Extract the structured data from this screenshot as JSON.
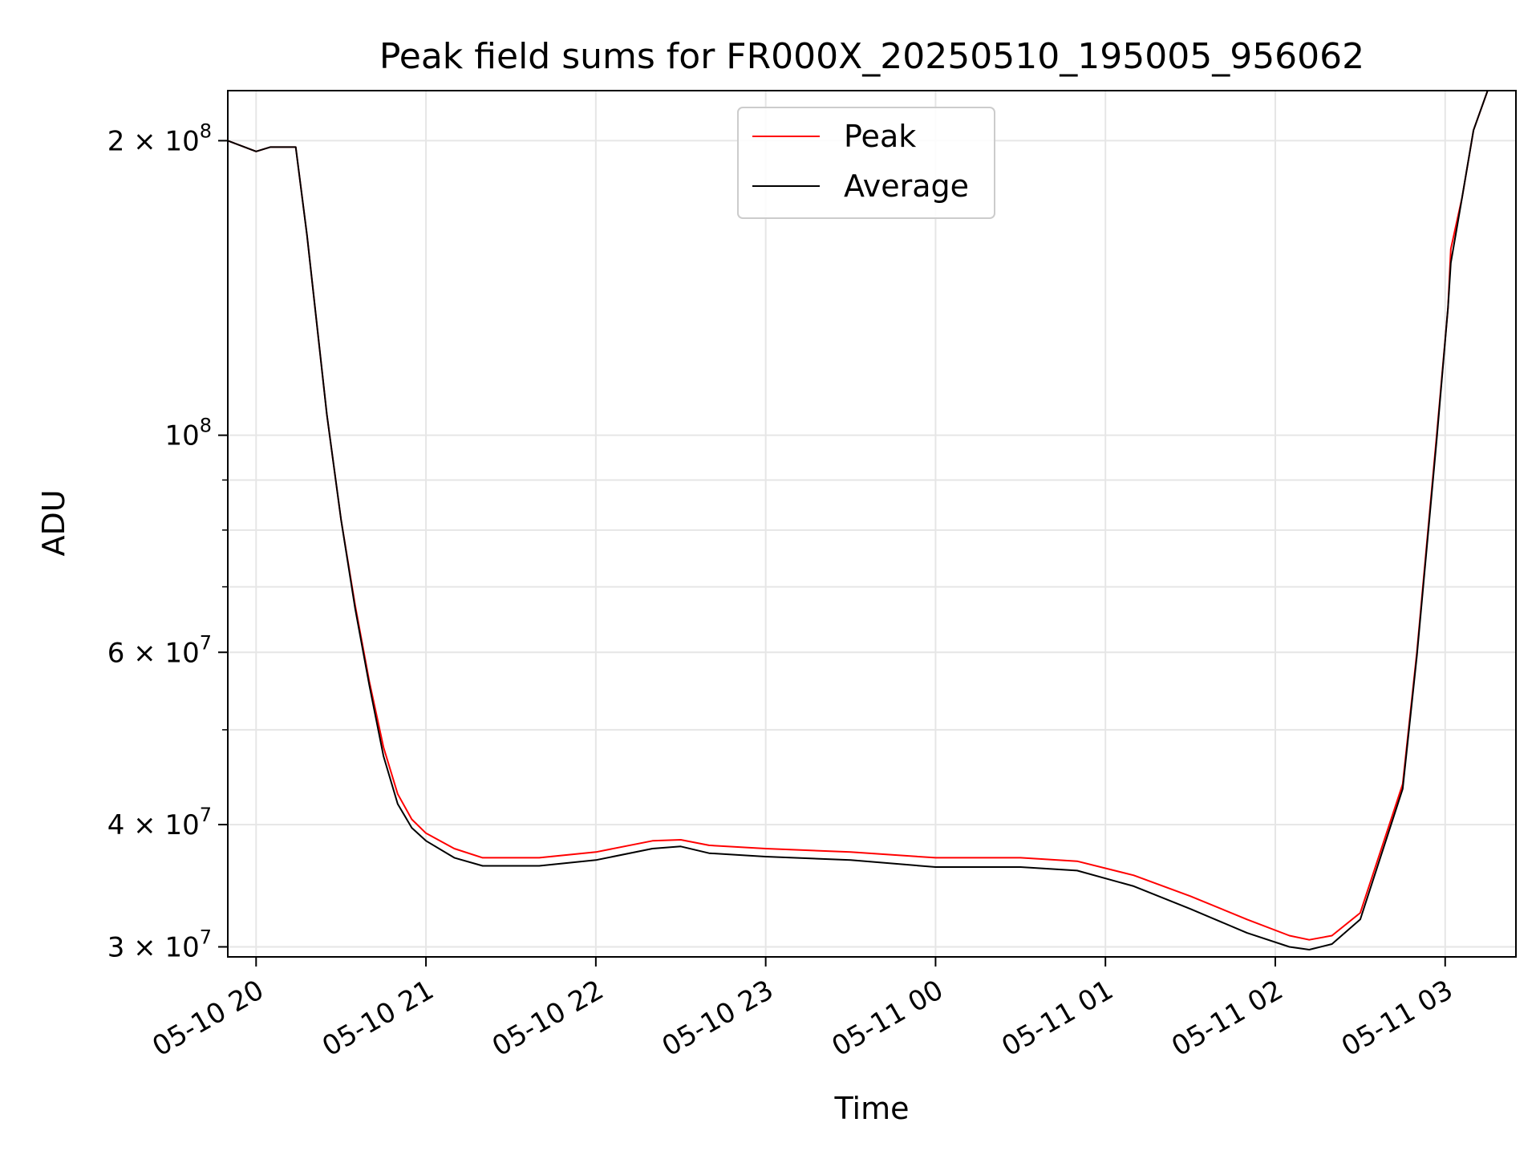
{
  "chart_data": {
    "type": "line",
    "title": "Peak field sums for FR000X_20250510_195005_956062",
    "xlabel": "Time",
    "ylabel": "ADU",
    "yscale": "log",
    "grid": true,
    "legend_position": "upper center",
    "xlim": [
      "2025-05-10 19:50",
      "2025-05-11 03:25"
    ],
    "ylim": [
      29300000,
      225000000
    ],
    "x_ticks": [
      "2025-05-10 20:00",
      "2025-05-10 21:00",
      "2025-05-10 22:00",
      "2025-05-10 23:00",
      "2025-05-11 00:00",
      "2025-05-11 01:00",
      "2025-05-11 02:00",
      "2025-05-11 03:00"
    ],
    "x_tick_labels": [
      "05-10 20",
      "05-10 21",
      "05-10 22",
      "05-10 23",
      "05-11 00",
      "05-11 01",
      "05-11 02",
      "05-11 03"
    ],
    "y_ticks": [
      {
        "value": 30000000,
        "mantissa": "3",
        "exp": "7"
      },
      {
        "value": 40000000,
        "mantissa": "4",
        "exp": "7"
      },
      {
        "value": 60000000,
        "mantissa": "6",
        "exp": "7"
      },
      {
        "value": 100000000,
        "mantissa": "",
        "exp": "8"
      },
      {
        "value": 200000000,
        "mantissa": "2",
        "exp": "8"
      }
    ],
    "y_minor_ticks": [
      50000000,
      70000000,
      80000000,
      90000000
    ],
    "x": [
      "2025-05-10 19:50",
      "2025-05-10 20:00",
      "2025-05-10 20:05",
      "2025-05-10 20:14",
      "2025-05-10 20:18",
      "2025-05-10 20:25",
      "2025-05-10 20:30",
      "2025-05-10 20:35",
      "2025-05-10 20:40",
      "2025-05-10 20:45",
      "2025-05-10 20:50",
      "2025-05-10 20:55",
      "2025-05-10 21:00",
      "2025-05-10 21:10",
      "2025-05-10 21:20",
      "2025-05-10 21:40",
      "2025-05-10 22:00",
      "2025-05-10 22:20",
      "2025-05-10 22:30",
      "2025-05-10 22:40",
      "2025-05-10 23:00",
      "2025-05-10 23:30",
      "2025-05-11 00:00",
      "2025-05-11 00:30",
      "2025-05-11 00:50",
      "2025-05-11 01:10",
      "2025-05-11 01:30",
      "2025-05-11 01:50",
      "2025-05-11 02:05",
      "2025-05-11 02:12",
      "2025-05-11 02:20",
      "2025-05-11 02:30",
      "2025-05-11 02:45",
      "2025-05-11 02:50",
      "2025-05-11 02:57",
      "2025-05-11 03:01",
      "2025-05-11 03:02",
      "2025-05-11 03:06",
      "2025-05-11 03:10",
      "2025-05-11 03:15"
    ],
    "series": [
      {
        "name": "Peak",
        "color": "#ff0000",
        "values": [
          200000000,
          195000000,
          197000000,
          197000000,
          160000000,
          105000000,
          82000000,
          67000000,
          56000000,
          48000000,
          43000000,
          40500000,
          39200000,
          37800000,
          37000000,
          37000000,
          37500000,
          38500000,
          38600000,
          38100000,
          37800000,
          37500000,
          37000000,
          37000000,
          36700000,
          35500000,
          33800000,
          32000000,
          30800000,
          30500000,
          30800000,
          32500000,
          44000000,
          60000000,
          100000000,
          135000000,
          155000000,
          175000000,
          205000000,
          225000000
        ]
      },
      {
        "name": "Average",
        "color": "#000000",
        "values": [
          200000000,
          195000000,
          197000000,
          197000000,
          160000000,
          105000000,
          82000000,
          66500000,
          55500000,
          47000000,
          42000000,
          39700000,
          38500000,
          37000000,
          36300000,
          36300000,
          36800000,
          37800000,
          38000000,
          37400000,
          37100000,
          36800000,
          36200000,
          36200000,
          35900000,
          34600000,
          32800000,
          31000000,
          30000000,
          29800000,
          30200000,
          32000000,
          43500000,
          59500000,
          99000000,
          135000000,
          150000000,
          175000000,
          205000000,
          225000000
        ]
      }
    ]
  }
}
